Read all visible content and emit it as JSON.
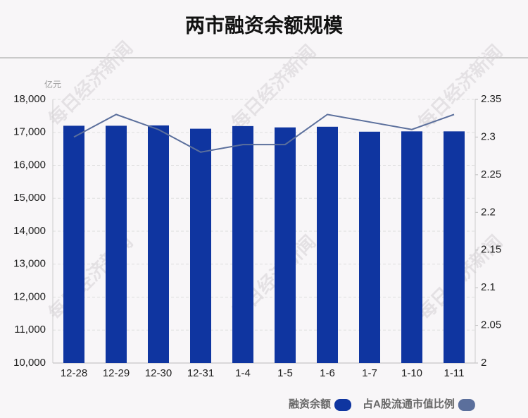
{
  "chart_data": {
    "type": "bar-line",
    "title": "两市融资余额规模",
    "y_unit": "亿元",
    "watermark": "每日经济新闻",
    "categories": [
      "12-28",
      "12-29",
      "12-30",
      "12-31",
      "1-4",
      "1-5",
      "1-6",
      "1-7",
      "1-10",
      "1-11"
    ],
    "series": [
      {
        "name": "融资余额",
        "type": "bar",
        "color": "#0f35a0",
        "values": [
          17200,
          17200,
          17210,
          17110,
          17190,
          17150,
          17170,
          17020,
          17030,
          17030
        ]
      },
      {
        "name": "占A股流通市值比例",
        "type": "line",
        "axis": "y2",
        "color": "#5b6f9c",
        "values": [
          2.3,
          2.33,
          2.31,
          2.28,
          2.29,
          2.29,
          2.33,
          2.32,
          2.31,
          2.33
        ]
      }
    ],
    "ylim": [
      10000,
      18000
    ],
    "yticks": [
      {
        "value": 10000,
        "label": "10,000"
      },
      {
        "value": 11000,
        "label": "11,000"
      },
      {
        "value": 12000,
        "label": "12,000"
      },
      {
        "value": 13000,
        "label": "13,000"
      },
      {
        "value": 14000,
        "label": "14,000"
      },
      {
        "value": 15000,
        "label": "15,000"
      },
      {
        "value": 16000,
        "label": "16,000"
      },
      {
        "value": 17000,
        "label": "17,000"
      },
      {
        "value": 18000,
        "label": "18,000"
      }
    ],
    "y2lim": [
      2,
      2.35
    ],
    "y2ticks": [
      2,
      2.05,
      2.1,
      2.15,
      2.2,
      2.25,
      2.3,
      2.35
    ],
    "grid": true
  }
}
